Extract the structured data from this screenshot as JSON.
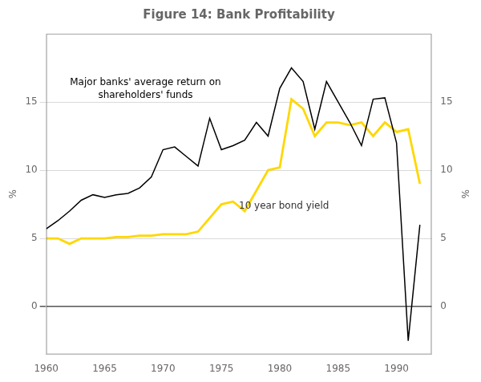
{
  "chart_data": {
    "type": "line",
    "title": "Figure 14: Bank Profitability",
    "ylabel": "%",
    "y2label": "%",
    "x": [
      1960,
      1961,
      1962,
      1963,
      1964,
      1965,
      1966,
      1967,
      1968,
      1969,
      1970,
      1971,
      1972,
      1973,
      1974,
      1975,
      1976,
      1977,
      1978,
      1979,
      1980,
      1981,
      1982,
      1983,
      1984,
      1985,
      1986,
      1987,
      1988,
      1989,
      1990,
      1991,
      1992
    ],
    "series": [
      {
        "color": "#000000",
        "values": [
          5.7,
          6.3,
          7.0,
          7.8,
          8.2,
          8.0,
          8.2,
          8.3,
          8.7,
          9.5,
          11.5,
          11.7,
          11.0,
          10.3,
          13.8,
          11.5,
          11.8,
          12.2,
          13.5,
          12.5,
          16.0,
          17.5,
          16.5,
          13.0,
          16.5,
          15.0,
          13.5,
          11.8,
          15.2,
          15.3,
          12.0,
          -2.5,
          6.0
        ]
      },
      {
        "color": "#FFD700",
        "values": [
          5.0,
          5.0,
          4.6,
          5.0,
          5.0,
          5.0,
          5.1,
          5.1,
          5.2,
          5.2,
          5.3,
          5.3,
          5.3,
          5.5,
          6.5,
          7.5,
          7.7,
          7.0,
          8.5,
          10.0,
          10.2,
          15.2,
          14.5,
          12.5,
          13.5,
          13.5,
          13.3,
          13.5,
          12.5,
          13.5,
          12.8,
          13.0,
          9.0
        ]
      }
    ],
    "xlim": [
      1960,
      1993
    ],
    "xticks": [
      1960,
      1965,
      1970,
      1975,
      1980,
      1985,
      1990
    ],
    "ylim": [
      -3.5,
      20
    ],
    "yticks": [
      0,
      5,
      10,
      15
    ],
    "y2lim": [
      -3.5,
      20
    ],
    "y2ticks": [
      0,
      5,
      10,
      15
    ],
    "grid": "y",
    "annotations": [
      {
        "text": "Major banks' average return on\nshareholders' funds",
        "x": 1968.5,
        "y": 16.8
      },
      {
        "text": "10 year bond yield",
        "x": 1976.5,
        "y": 7.2
      }
    ]
  }
}
